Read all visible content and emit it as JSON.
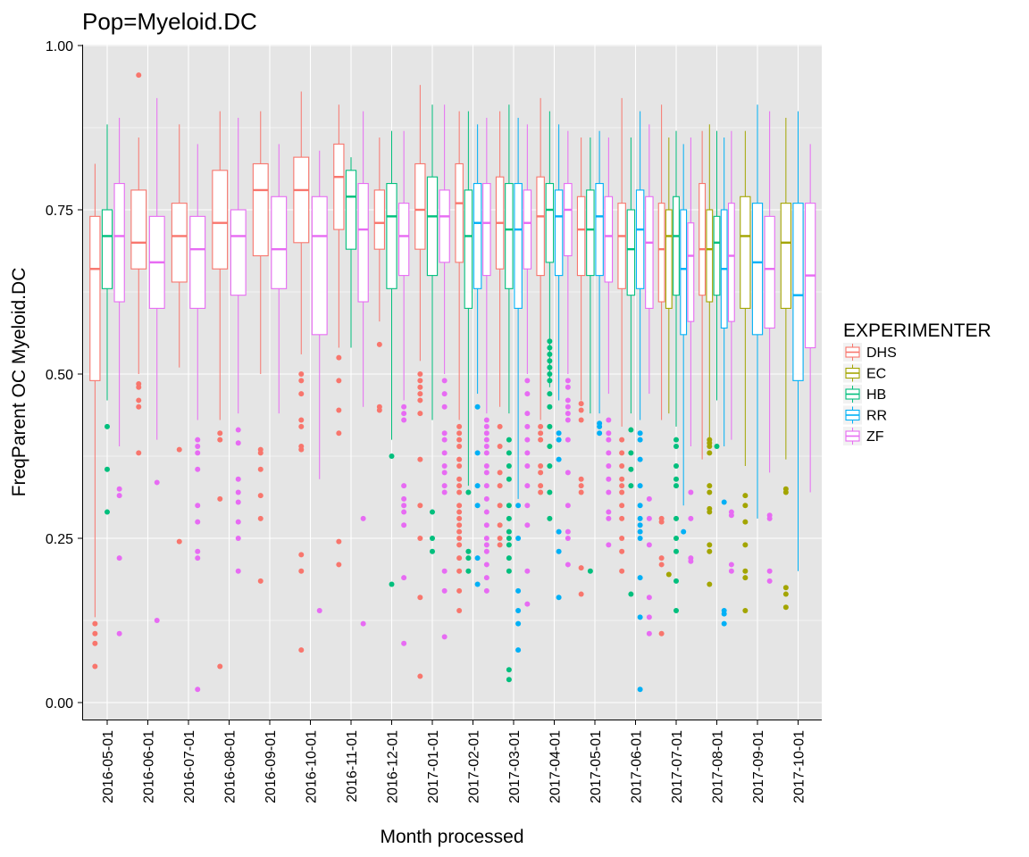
{
  "chart_data": {
    "type": "box",
    "title": "Pop=Myeloid.DC",
    "xlabel": "Month processed",
    "ylabel": "FreqParent OC Myeloid.DC",
    "ylim": [
      0,
      1
    ],
    "y_ticks": [
      "0.00",
      "0.25",
      "0.50",
      "0.75",
      "1.00"
    ],
    "grid": true,
    "legend": {
      "title": "EXPERIMENTER",
      "position": "right",
      "entries": [
        "DHS",
        "EC",
        "HB",
        "RR",
        "ZF"
      ]
    },
    "colors": {
      "DHS": "#F8766D",
      "EC": "#A3A500",
      "HB": "#00BF7D",
      "RR": "#00B0F6",
      "ZF": "#E76BF3"
    },
    "categories": [
      "2016-05-01",
      "2016-06-01",
      "2016-07-01",
      "2016-08-01",
      "2016-09-01",
      "2016-10-01",
      "2016-11-01",
      "2016-12-01",
      "2017-01-01",
      "2017-02-01",
      "2017-03-01",
      "2017-04-01",
      "2017-05-01",
      "2017-06-01",
      "2017-07-01",
      "2017-08-01",
      "2017-09-01",
      "2017-10-01"
    ],
    "boxes": [
      {
        "month": "2016-05-01",
        "group": "DHS",
        "min": 0.13,
        "q1": 0.49,
        "median": 0.66,
        "q3": 0.74,
        "max": 0.82,
        "outliers": [
          0.12,
          0.105,
          0.09,
          0.055
        ]
      },
      {
        "month": "2016-05-01",
        "group": "HB",
        "min": 0.46,
        "q1": 0.63,
        "median": 0.71,
        "q3": 0.75,
        "max": 0.88,
        "outliers": [
          0.42,
          0.355,
          0.29
        ]
      },
      {
        "month": "2016-05-01",
        "group": "ZF",
        "min": 0.39,
        "q1": 0.61,
        "median": 0.71,
        "q3": 0.79,
        "max": 0.89,
        "outliers": [
          0.325,
          0.315,
          0.22,
          0.105
        ]
      },
      {
        "month": "2016-06-01",
        "group": "DHS",
        "min": 0.5,
        "q1": 0.66,
        "median": 0.7,
        "q3": 0.78,
        "max": 0.86,
        "outliers": [
          0.955,
          0.485,
          0.48,
          0.46,
          0.45,
          0.38
        ]
      },
      {
        "month": "2016-06-01",
        "group": "ZF",
        "min": 0.4,
        "q1": 0.6,
        "median": 0.67,
        "q3": 0.74,
        "max": 0.92,
        "outliers": [
          0.335,
          0.125
        ]
      },
      {
        "month": "2016-07-01",
        "group": "DHS",
        "min": 0.51,
        "q1": 0.64,
        "median": 0.71,
        "q3": 0.76,
        "max": 0.88,
        "outliers": [
          0.385,
          0.245
        ]
      },
      {
        "month": "2016-07-01",
        "group": "ZF",
        "min": 0.43,
        "q1": 0.6,
        "median": 0.69,
        "q3": 0.74,
        "max": 0.85,
        "outliers": [
          0.4,
          0.39,
          0.38,
          0.355,
          0.3,
          0.275,
          0.23,
          0.22,
          0.02
        ]
      },
      {
        "month": "2016-08-01",
        "group": "DHS",
        "min": 0.43,
        "q1": 0.66,
        "median": 0.73,
        "q3": 0.81,
        "max": 0.9,
        "outliers": [
          0.41,
          0.4,
          0.31,
          0.055
        ]
      },
      {
        "month": "2016-08-01",
        "group": "ZF",
        "min": 0.44,
        "q1": 0.62,
        "median": 0.71,
        "q3": 0.75,
        "max": 0.89,
        "outliers": [
          0.415,
          0.395,
          0.34,
          0.32,
          0.305,
          0.275,
          0.25,
          0.2
        ]
      },
      {
        "month": "2016-09-01",
        "group": "DHS",
        "min": 0.5,
        "q1": 0.68,
        "median": 0.78,
        "q3": 0.82,
        "max": 0.9,
        "outliers": [
          0.385,
          0.38,
          0.355,
          0.315,
          0.28,
          0.185
        ]
      },
      {
        "month": "2016-09-01",
        "group": "ZF",
        "min": 0.44,
        "q1": 0.63,
        "median": 0.69,
        "q3": 0.77,
        "max": 0.85,
        "outliers": []
      },
      {
        "month": "2016-10-01",
        "group": "DHS",
        "min": 0.53,
        "q1": 0.7,
        "median": 0.78,
        "q3": 0.83,
        "max": 0.93,
        "outliers": [
          0.5,
          0.49,
          0.47,
          0.43,
          0.42,
          0.39,
          0.385,
          0.225,
          0.2,
          0.08
        ]
      },
      {
        "month": "2016-10-01",
        "group": "ZF",
        "min": 0.34,
        "q1": 0.56,
        "median": 0.71,
        "q3": 0.77,
        "max": 0.84,
        "outliers": [
          0.14
        ]
      },
      {
        "month": "2016-11-01",
        "group": "DHS",
        "min": 0.54,
        "q1": 0.72,
        "median": 0.8,
        "q3": 0.85,
        "max": 0.91,
        "outliers": [
          0.525,
          0.49,
          0.445,
          0.41,
          0.245,
          0.21
        ]
      },
      {
        "month": "2016-11-01",
        "group": "HB",
        "min": 0.54,
        "q1": 0.69,
        "median": 0.77,
        "q3": 0.81,
        "max": 0.83,
        "outliers": []
      },
      {
        "month": "2016-11-01",
        "group": "ZF",
        "min": 0.45,
        "q1": 0.61,
        "median": 0.72,
        "q3": 0.79,
        "max": 0.9,
        "outliers": [
          0.28,
          0.12
        ]
      },
      {
        "month": "2016-12-01",
        "group": "DHS",
        "min": 0.58,
        "q1": 0.69,
        "median": 0.73,
        "q3": 0.78,
        "max": 0.86,
        "outliers": [
          0.545,
          0.45,
          0.445
        ]
      },
      {
        "month": "2016-12-01",
        "group": "HB",
        "min": 0.4,
        "q1": 0.63,
        "median": 0.74,
        "q3": 0.79,
        "max": 0.87,
        "outliers": [
          0.375,
          0.18
        ]
      },
      {
        "month": "2016-12-01",
        "group": "ZF",
        "min": 0.46,
        "q1": 0.65,
        "median": 0.71,
        "q3": 0.76,
        "max": 0.87,
        "outliers": [
          0.45,
          0.44,
          0.43,
          0.33,
          0.31,
          0.3,
          0.29,
          0.27,
          0.19,
          0.09
        ]
      },
      {
        "month": "2017-01-01",
        "group": "DHS",
        "min": 0.52,
        "q1": 0.69,
        "median": 0.75,
        "q3": 0.82,
        "max": 0.94,
        "outliers": [
          0.5,
          0.49,
          0.48,
          0.47,
          0.46,
          0.44,
          0.37,
          0.3,
          0.25,
          0.16,
          0.04
        ]
      },
      {
        "month": "2017-01-01",
        "group": "HB",
        "min": 0.43,
        "q1": 0.65,
        "median": 0.74,
        "q3": 0.8,
        "max": 0.91,
        "outliers": [
          0.29,
          0.25,
          0.23
        ]
      },
      {
        "month": "2017-01-01",
        "group": "ZF",
        "min": 0.5,
        "q1": 0.67,
        "median": 0.74,
        "q3": 0.78,
        "max": 0.91,
        "outliers": [
          0.49,
          0.47,
          0.45,
          0.41,
          0.4,
          0.38,
          0.36,
          0.35,
          0.33,
          0.32,
          0.2,
          0.17,
          0.1
        ]
      },
      {
        "month": "2017-02-01",
        "group": "DHS",
        "min": 0.43,
        "q1": 0.67,
        "median": 0.76,
        "q3": 0.82,
        "max": 0.9,
        "outliers": [
          0.42,
          0.41,
          0.4,
          0.39,
          0.37,
          0.36,
          0.34,
          0.33,
          0.32,
          0.3,
          0.29,
          0.28,
          0.27,
          0.26,
          0.25,
          0.24,
          0.22,
          0.2,
          0.17,
          0.14
        ]
      },
      {
        "month": "2017-02-01",
        "group": "HB",
        "min": 0.33,
        "q1": 0.6,
        "median": 0.71,
        "q3": 0.78,
        "max": 0.9,
        "outliers": [
          0.32,
          0.23,
          0.22,
          0.2
        ]
      },
      {
        "month": "2017-02-01",
        "group": "RR",
        "min": 0.47,
        "q1": 0.63,
        "median": 0.73,
        "q3": 0.79,
        "max": 0.88,
        "outliers": [
          0.45,
          0.38,
          0.33,
          0.3,
          0.22,
          0.18
        ]
      },
      {
        "month": "2017-02-01",
        "group": "ZF",
        "min": 0.44,
        "q1": 0.65,
        "median": 0.73,
        "q3": 0.79,
        "max": 0.89,
        "outliers": [
          0.43,
          0.42,
          0.41,
          0.4,
          0.39,
          0.38,
          0.36,
          0.35,
          0.33,
          0.31,
          0.29,
          0.27,
          0.25,
          0.24,
          0.23,
          0.21,
          0.19,
          0.17
        ]
      },
      {
        "month": "2017-03-01",
        "group": "DHS",
        "min": 0.45,
        "q1": 0.66,
        "median": 0.73,
        "q3": 0.8,
        "max": 0.9,
        "outliers": [
          0.42,
          0.39,
          0.35,
          0.33,
          0.3,
          0.27,
          0.25,
          0.24
        ]
      },
      {
        "month": "2017-03-01",
        "group": "HB",
        "min": 0.44,
        "q1": 0.63,
        "median": 0.72,
        "q3": 0.79,
        "max": 0.91,
        "outliers": [
          0.4,
          0.38,
          0.36,
          0.34,
          0.3,
          0.28,
          0.26,
          0.25,
          0.24,
          0.22,
          0.2,
          0.05,
          0.035
        ]
      },
      {
        "month": "2017-03-01",
        "group": "RR",
        "min": 0.31,
        "q1": 0.6,
        "median": 0.72,
        "q3": 0.79,
        "max": 0.89,
        "outliers": [
          0.3,
          0.25,
          0.17,
          0.14,
          0.12,
          0.08
        ]
      },
      {
        "month": "2017-03-01",
        "group": "ZF",
        "min": 0.5,
        "q1": 0.66,
        "median": 0.73,
        "q3": 0.78,
        "max": 0.88,
        "outliers": [
          0.49,
          0.47,
          0.44,
          0.42,
          0.4,
          0.38,
          0.36,
          0.33,
          0.3,
          0.27,
          0.2,
          0.15
        ]
      },
      {
        "month": "2017-04-01",
        "group": "DHS",
        "min": 0.43,
        "q1": 0.65,
        "median": 0.74,
        "q3": 0.8,
        "max": 0.92,
        "outliers": [
          0.42,
          0.41,
          0.4,
          0.36,
          0.35,
          0.33,
          0.32
        ]
      },
      {
        "month": "2017-04-01",
        "group": "HB",
        "min": 0.48,
        "q1": 0.67,
        "median": 0.75,
        "q3": 0.79,
        "max": 0.9,
        "outliers": [
          0.55,
          0.54,
          0.53,
          0.52,
          0.51,
          0.5,
          0.49,
          0.47,
          0.45,
          0.42,
          0.39,
          0.36,
          0.32,
          0.28
        ]
      },
      {
        "month": "2017-04-01",
        "group": "RR",
        "min": 0.46,
        "q1": 0.65,
        "median": 0.74,
        "q3": 0.78,
        "max": 0.88,
        "outliers": [
          0.41,
          0.4,
          0.37,
          0.26,
          0.23,
          0.16
        ]
      },
      {
        "month": "2017-04-01",
        "group": "ZF",
        "min": 0.5,
        "q1": 0.68,
        "median": 0.75,
        "q3": 0.79,
        "max": 0.87,
        "outliers": [
          0.49,
          0.48,
          0.46,
          0.45,
          0.44,
          0.43,
          0.4,
          0.35,
          0.3,
          0.26,
          0.25,
          0.21
        ]
      },
      {
        "month": "2017-05-01",
        "group": "DHS",
        "min": 0.46,
        "q1": 0.65,
        "median": 0.72,
        "q3": 0.77,
        "max": 0.86,
        "outliers": [
          0.455,
          0.445,
          0.43,
          0.34,
          0.33,
          0.32,
          0.205,
          0.165
        ]
      },
      {
        "month": "2017-05-01",
        "group": "HB",
        "min": 0.44,
        "q1": 0.65,
        "median": 0.72,
        "q3": 0.78,
        "max": 0.86,
        "outliers": [
          0.2
        ]
      },
      {
        "month": "2017-05-01",
        "group": "RR",
        "min": 0.44,
        "q1": 0.65,
        "median": 0.74,
        "q3": 0.79,
        "max": 0.87,
        "outliers": [
          0.425,
          0.42,
          0.41
        ]
      },
      {
        "month": "2017-05-01",
        "group": "ZF",
        "min": 0.47,
        "q1": 0.64,
        "median": 0.71,
        "q3": 0.77,
        "max": 0.86,
        "outliers": [
          0.43,
          0.41,
          0.4,
          0.38,
          0.36,
          0.34,
          0.32,
          0.29,
          0.28,
          0.24
        ]
      },
      {
        "month": "2017-06-01",
        "group": "DHS",
        "min": 0.42,
        "q1": 0.63,
        "median": 0.71,
        "q3": 0.76,
        "max": 0.92,
        "outliers": [
          0.4,
          0.38,
          0.36,
          0.34,
          0.33,
          0.32,
          0.3,
          0.28,
          0.25,
          0.23,
          0.2
        ]
      },
      {
        "month": "2017-06-01",
        "group": "HB",
        "min": 0.44,
        "q1": 0.62,
        "median": 0.69,
        "q3": 0.75,
        "max": 0.86,
        "outliers": [
          0.415,
          0.38,
          0.355,
          0.33,
          0.165
        ]
      },
      {
        "month": "2017-06-01",
        "group": "RR",
        "min": 0.43,
        "q1": 0.63,
        "median": 0.72,
        "q3": 0.78,
        "max": 0.9,
        "outliers": [
          0.41,
          0.4,
          0.37,
          0.33,
          0.3,
          0.28,
          0.27,
          0.26,
          0.25,
          0.19,
          0.13,
          0.02
        ]
      },
      {
        "month": "2017-06-01",
        "group": "ZF",
        "min": 0.47,
        "q1": 0.6,
        "median": 0.7,
        "q3": 0.77,
        "max": 0.88,
        "outliers": [
          0.31,
          0.28,
          0.24,
          0.16,
          0.13,
          0.105
        ]
      },
      {
        "month": "2017-07-01",
        "group": "DHS",
        "min": 0.43,
        "q1": 0.61,
        "median": 0.69,
        "q3": 0.76,
        "max": 0.91,
        "outliers": [
          0.28,
          0.275,
          0.22,
          0.21,
          0.105
        ]
      },
      {
        "month": "2017-07-01",
        "group": "EC",
        "min": 0.44,
        "q1": 0.6,
        "median": 0.71,
        "q3": 0.75,
        "max": 0.86,
        "outliers": [
          0.195
        ]
      },
      {
        "month": "2017-07-01",
        "group": "HB",
        "min": 0.42,
        "q1": 0.62,
        "median": 0.71,
        "q3": 0.77,
        "max": 0.87,
        "outliers": [
          0.4,
          0.39,
          0.36,
          0.34,
          0.33,
          0.28,
          0.25,
          0.23,
          0.185,
          0.14
        ]
      },
      {
        "month": "2017-07-01",
        "group": "RR",
        "min": 0.3,
        "q1": 0.56,
        "median": 0.66,
        "q3": 0.75,
        "max": 0.85,
        "outliers": [
          0.26
        ]
      },
      {
        "month": "2017-07-01",
        "group": "ZF",
        "min": 0.39,
        "q1": 0.58,
        "median": 0.68,
        "q3": 0.73,
        "max": 0.86,
        "outliers": [
          0.32,
          0.28,
          0.22,
          0.215
        ]
      },
      {
        "month": "2017-08-01",
        "group": "DHS",
        "min": 0.37,
        "q1": 0.62,
        "median": 0.69,
        "q3": 0.79,
        "max": 0.87,
        "outliers": []
      },
      {
        "month": "2017-08-01",
        "group": "EC",
        "min": 0.4,
        "q1": 0.61,
        "median": 0.69,
        "q3": 0.75,
        "max": 0.88,
        "outliers": [
          0.4,
          0.395,
          0.39,
          0.38,
          0.33,
          0.32,
          0.295,
          0.29,
          0.24,
          0.23,
          0.18
        ]
      },
      {
        "month": "2017-08-01",
        "group": "HB",
        "min": 0.46,
        "q1": 0.62,
        "median": 0.7,
        "q3": 0.74,
        "max": 0.87,
        "outliers": [
          0.39
        ]
      },
      {
        "month": "2017-08-01",
        "group": "RR",
        "min": 0.39,
        "q1": 0.57,
        "median": 0.66,
        "q3": 0.75,
        "max": 0.86,
        "outliers": [
          0.305,
          0.14,
          0.135,
          0.12
        ]
      },
      {
        "month": "2017-08-01",
        "group": "ZF",
        "min": 0.4,
        "q1": 0.58,
        "median": 0.68,
        "q3": 0.76,
        "max": 0.87,
        "outliers": [
          0.29,
          0.285,
          0.21,
          0.2
        ]
      },
      {
        "month": "2017-09-01",
        "group": "EC",
        "min": 0.36,
        "q1": 0.6,
        "median": 0.71,
        "q3": 0.77,
        "max": 0.87,
        "outliers": [
          0.315,
          0.3,
          0.275,
          0.24,
          0.2,
          0.19,
          0.14
        ]
      },
      {
        "month": "2017-09-01",
        "group": "RR",
        "min": 0.28,
        "q1": 0.56,
        "median": 0.67,
        "q3": 0.76,
        "max": 0.91,
        "outliers": []
      },
      {
        "month": "2017-09-01",
        "group": "ZF",
        "min": 0.35,
        "q1": 0.57,
        "median": 0.66,
        "q3": 0.74,
        "max": 0.9,
        "outliers": [
          0.285,
          0.28,
          0.2,
          0.185
        ]
      },
      {
        "month": "2017-10-01",
        "group": "EC",
        "min": 0.37,
        "q1": 0.6,
        "median": 0.7,
        "q3": 0.76,
        "max": 0.89,
        "outliers": [
          0.325,
          0.32,
          0.175,
          0.165,
          0.145
        ]
      },
      {
        "month": "2017-10-01",
        "group": "RR",
        "min": 0.2,
        "q1": 0.49,
        "median": 0.62,
        "q3": 0.76,
        "max": 0.9,
        "outliers": []
      },
      {
        "month": "2017-10-01",
        "group": "ZF",
        "min": 0.32,
        "q1": 0.54,
        "median": 0.65,
        "q3": 0.76,
        "max": 0.85,
        "outliers": []
      }
    ]
  }
}
